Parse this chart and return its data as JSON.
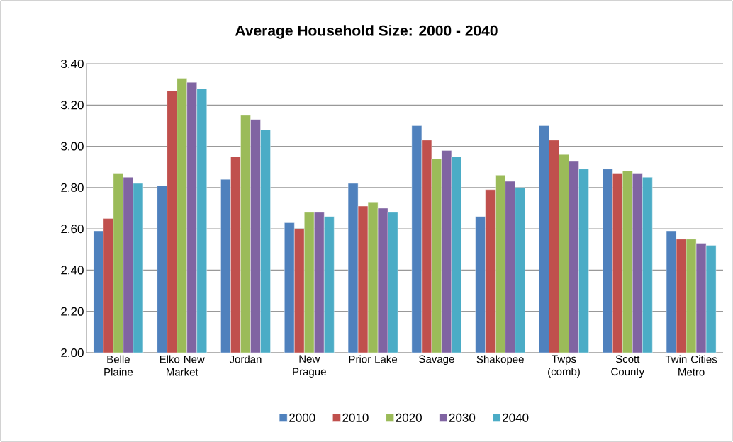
{
  "chart_data": {
    "type": "bar",
    "title": "Average Household Size: 2000 - 2040",
    "categories": [
      "Belle Plaine",
      "Elko New Market",
      "Jordan",
      "New Prague",
      "Prior Lake",
      "Savage",
      "Shakopee",
      "Twps (comb)",
      "Scott County",
      "Twin Cities Metro"
    ],
    "series": [
      {
        "name": "2000",
        "color": "#4f81bd",
        "values": [
          2.59,
          2.81,
          2.84,
          2.63,
          2.82,
          3.1,
          2.66,
          3.1,
          2.89,
          2.59
        ]
      },
      {
        "name": "2010",
        "color": "#c0504d",
        "values": [
          2.65,
          3.27,
          2.95,
          2.6,
          2.71,
          3.03,
          2.79,
          3.03,
          2.87,
          2.55
        ]
      },
      {
        "name": "2020",
        "color": "#9bbb59",
        "values": [
          2.87,
          3.33,
          3.15,
          2.68,
          2.73,
          2.94,
          2.86,
          2.96,
          2.88,
          2.55
        ]
      },
      {
        "name": "2030",
        "color": "#8064a2",
        "values": [
          2.85,
          3.31,
          3.13,
          2.68,
          2.7,
          2.98,
          2.83,
          2.93,
          2.87,
          2.53
        ]
      },
      {
        "name": "2040",
        "color": "#4bacc6",
        "values": [
          2.82,
          3.28,
          3.08,
          2.66,
          2.68,
          2.95,
          2.8,
          2.89,
          2.85,
          2.52
        ]
      }
    ],
    "ylim": [
      2.0,
      3.4
    ],
    "yticks": [
      {
        "value": 2.0,
        "label": "2.00"
      },
      {
        "value": 2.2,
        "label": "2.20"
      },
      {
        "value": 2.4,
        "label": "2.40"
      },
      {
        "value": 2.6,
        "label": "2.60"
      },
      {
        "value": 2.8,
        "label": "2.80"
      },
      {
        "value": 3.0,
        "label": "3.00"
      },
      {
        "value": 3.2,
        "label": "3.20"
      },
      {
        "value": 3.4,
        "label": "3.40"
      }
    ],
    "grid": "y",
    "legend": "bottom"
  }
}
